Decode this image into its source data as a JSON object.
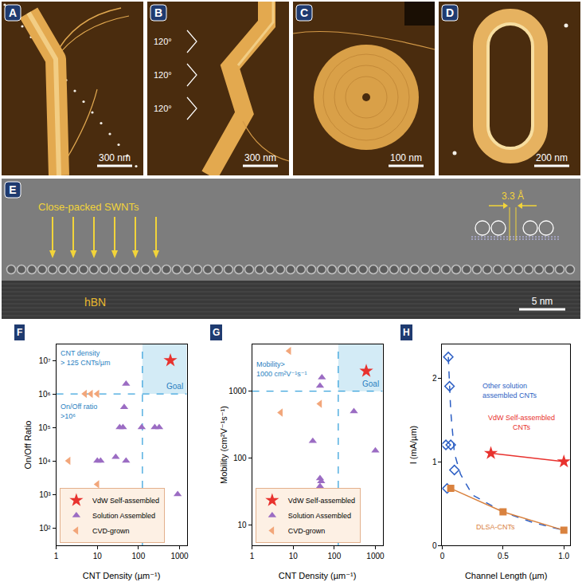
{
  "images": [
    {
      "panel": "A",
      "scale_bar": "300 nm"
    },
    {
      "panel": "B",
      "scale_bar": "300 nm",
      "angles": [
        "120°",
        "120°",
        "120°"
      ]
    },
    {
      "panel": "C",
      "scale_bar": "100 nm"
    },
    {
      "panel": "D",
      "scale_bar": "200 nm"
    }
  ],
  "tem": {
    "panel": "E",
    "annotation": "Close-packed SWNTs",
    "spacing": "3.3 Å",
    "substrate": "hBN",
    "scale_bar": "5 nm"
  },
  "chart_data": [
    {
      "panel": "F",
      "type": "scatter",
      "log": true,
      "grid": false,
      "x_label": "CNT Density (µm⁻¹)",
      "y_label": "On/Off Ratio",
      "xlim": [
        1,
        1500
      ],
      "ylim": [
        30,
        30000000
      ],
      "xticks": [
        1,
        10,
        100,
        1000
      ],
      "yticks": [
        {
          "value": 100,
          "label": "10²"
        },
        {
          "value": 1000,
          "label": "10³"
        },
        {
          "value": 10000,
          "label": "10⁴"
        },
        {
          "value": 100000,
          "label": "10⁵"
        },
        {
          "value": 1000000,
          "label": "10⁶"
        },
        {
          "value": 10000000,
          "label": "10⁷"
        }
      ],
      "thresholds": {
        "x": 125,
        "y": 1000000
      },
      "annotations": [
        "CNT density > 125 CNTs/µm",
        "On/Off ratio >10⁶"
      ],
      "goal_label": "Goal",
      "legend": "lower left",
      "series": [
        {
          "name": "VdW Self-assembled",
          "color": "#e8322e",
          "marker": "star",
          "line_style": "none",
          "x": [
            600
          ],
          "values": [
            10000000
          ]
        },
        {
          "name": "Solution Assembled",
          "color": "#9b6cc3",
          "marker": "triangle-up",
          "line_style": "none",
          "x": [
            50,
            45,
            10,
            12,
            28,
            50,
            35,
            42,
            120,
            250,
            320,
            900
          ],
          "values": [
            2000000,
            400000,
            10000,
            10000,
            13000,
            10000,
            100000,
            100000,
            100000,
            100000,
            100000,
            1000
          ]
        },
        {
          "name": "CVD-grown",
          "color": "#f2a67a",
          "marker": "triangle-left",
          "line_style": "none",
          "x": [
            2,
            5,
            7,
            10,
            10
          ],
          "values": [
            10000,
            1000000,
            1000000,
            1000000,
            2000
          ]
        }
      ]
    },
    {
      "panel": "G",
      "type": "scatter",
      "log": true,
      "grid": false,
      "x_label": "CNT Density (µm⁻¹)",
      "y_label": "Mobility (cm²V⁻¹s⁻¹)",
      "xlim": [
        1,
        1500
      ],
      "ylim": [
        5,
        5000
      ],
      "xticks": [
        1,
        10,
        100,
        1000
      ],
      "yticks": [
        10,
        100,
        1000
      ],
      "thresholds": {
        "x": 125,
        "y": 1000
      },
      "annotations": [
        "Mobility> 1000 cm²V⁻¹s⁻¹"
      ],
      "goal_label": "Goal",
      "legend": "lower left",
      "series": [
        {
          "name": "VdW Self-assembled",
          "color": "#e8322e",
          "marker": "star",
          "line_style": "none",
          "x": [
            600
          ],
          "values": [
            2000
          ]
        },
        {
          "name": "Solution Assembled",
          "color": "#9b6cc3",
          "marker": "triangle-up",
          "line_style": "none",
          "x": [
            50,
            45,
            30,
            45,
            48,
            45,
            300,
            1000
          ],
          "values": [
            1600,
            1200,
            180,
            50,
            45,
            38,
            500,
            130
          ]
        },
        {
          "name": "CVD-grown",
          "color": "#f2a67a",
          "marker": "triangle-left",
          "line_style": "none",
          "x": [
            8,
            5,
            45
          ],
          "values": [
            4000,
            480,
            650
          ]
        }
      ]
    },
    {
      "panel": "H",
      "type": "scatter",
      "grid": false,
      "x_label": "Channel Length (µm)",
      "y_label": "I (mA/µm)",
      "xlim": [
        0,
        1.05
      ],
      "ylim": [
        0,
        2.4
      ],
      "xticks": [
        0,
        0.5,
        {
          "value": 1,
          "label": "1.0"
        }
      ],
      "yticks": [
        0,
        1,
        2
      ],
      "series": [
        {
          "name": "Other solution assembled CNTs",
          "color": "#2d5fc4",
          "marker": "diamond-open",
          "line_style": "none",
          "x": [
            0.05,
            0.06,
            0.03,
            0.07,
            0.1,
            0.04
          ],
          "values": [
            2.25,
            1.9,
            1.2,
            1.2,
            0.9,
            0.68
          ]
        },
        {
          "color": "#2d5fc4",
          "marker": "none",
          "line_style": "dashed",
          "x": [
            0.05,
            0.07,
            0.1,
            0.15,
            0.25,
            0.5,
            0.75,
            1.0
          ],
          "values": [
            2.25,
            1.6,
            1.1,
            0.85,
            0.6,
            0.4,
            0.27,
            0.18
          ]
        },
        {
          "name": "VdW Self-assembled CNTs",
          "color": "#e8322e",
          "marker": "star",
          "line_style": "solid",
          "x": [
            0.4,
            1.0
          ],
          "values": [
            1.1,
            1.0
          ]
        },
        {
          "name": "DLSA-CNTs",
          "color": "#d9823f",
          "marker": "square",
          "line_style": "solid",
          "x": [
            0.07,
            0.5,
            1.0
          ],
          "values": [
            0.68,
            0.4,
            0.18
          ]
        }
      ]
    }
  ]
}
